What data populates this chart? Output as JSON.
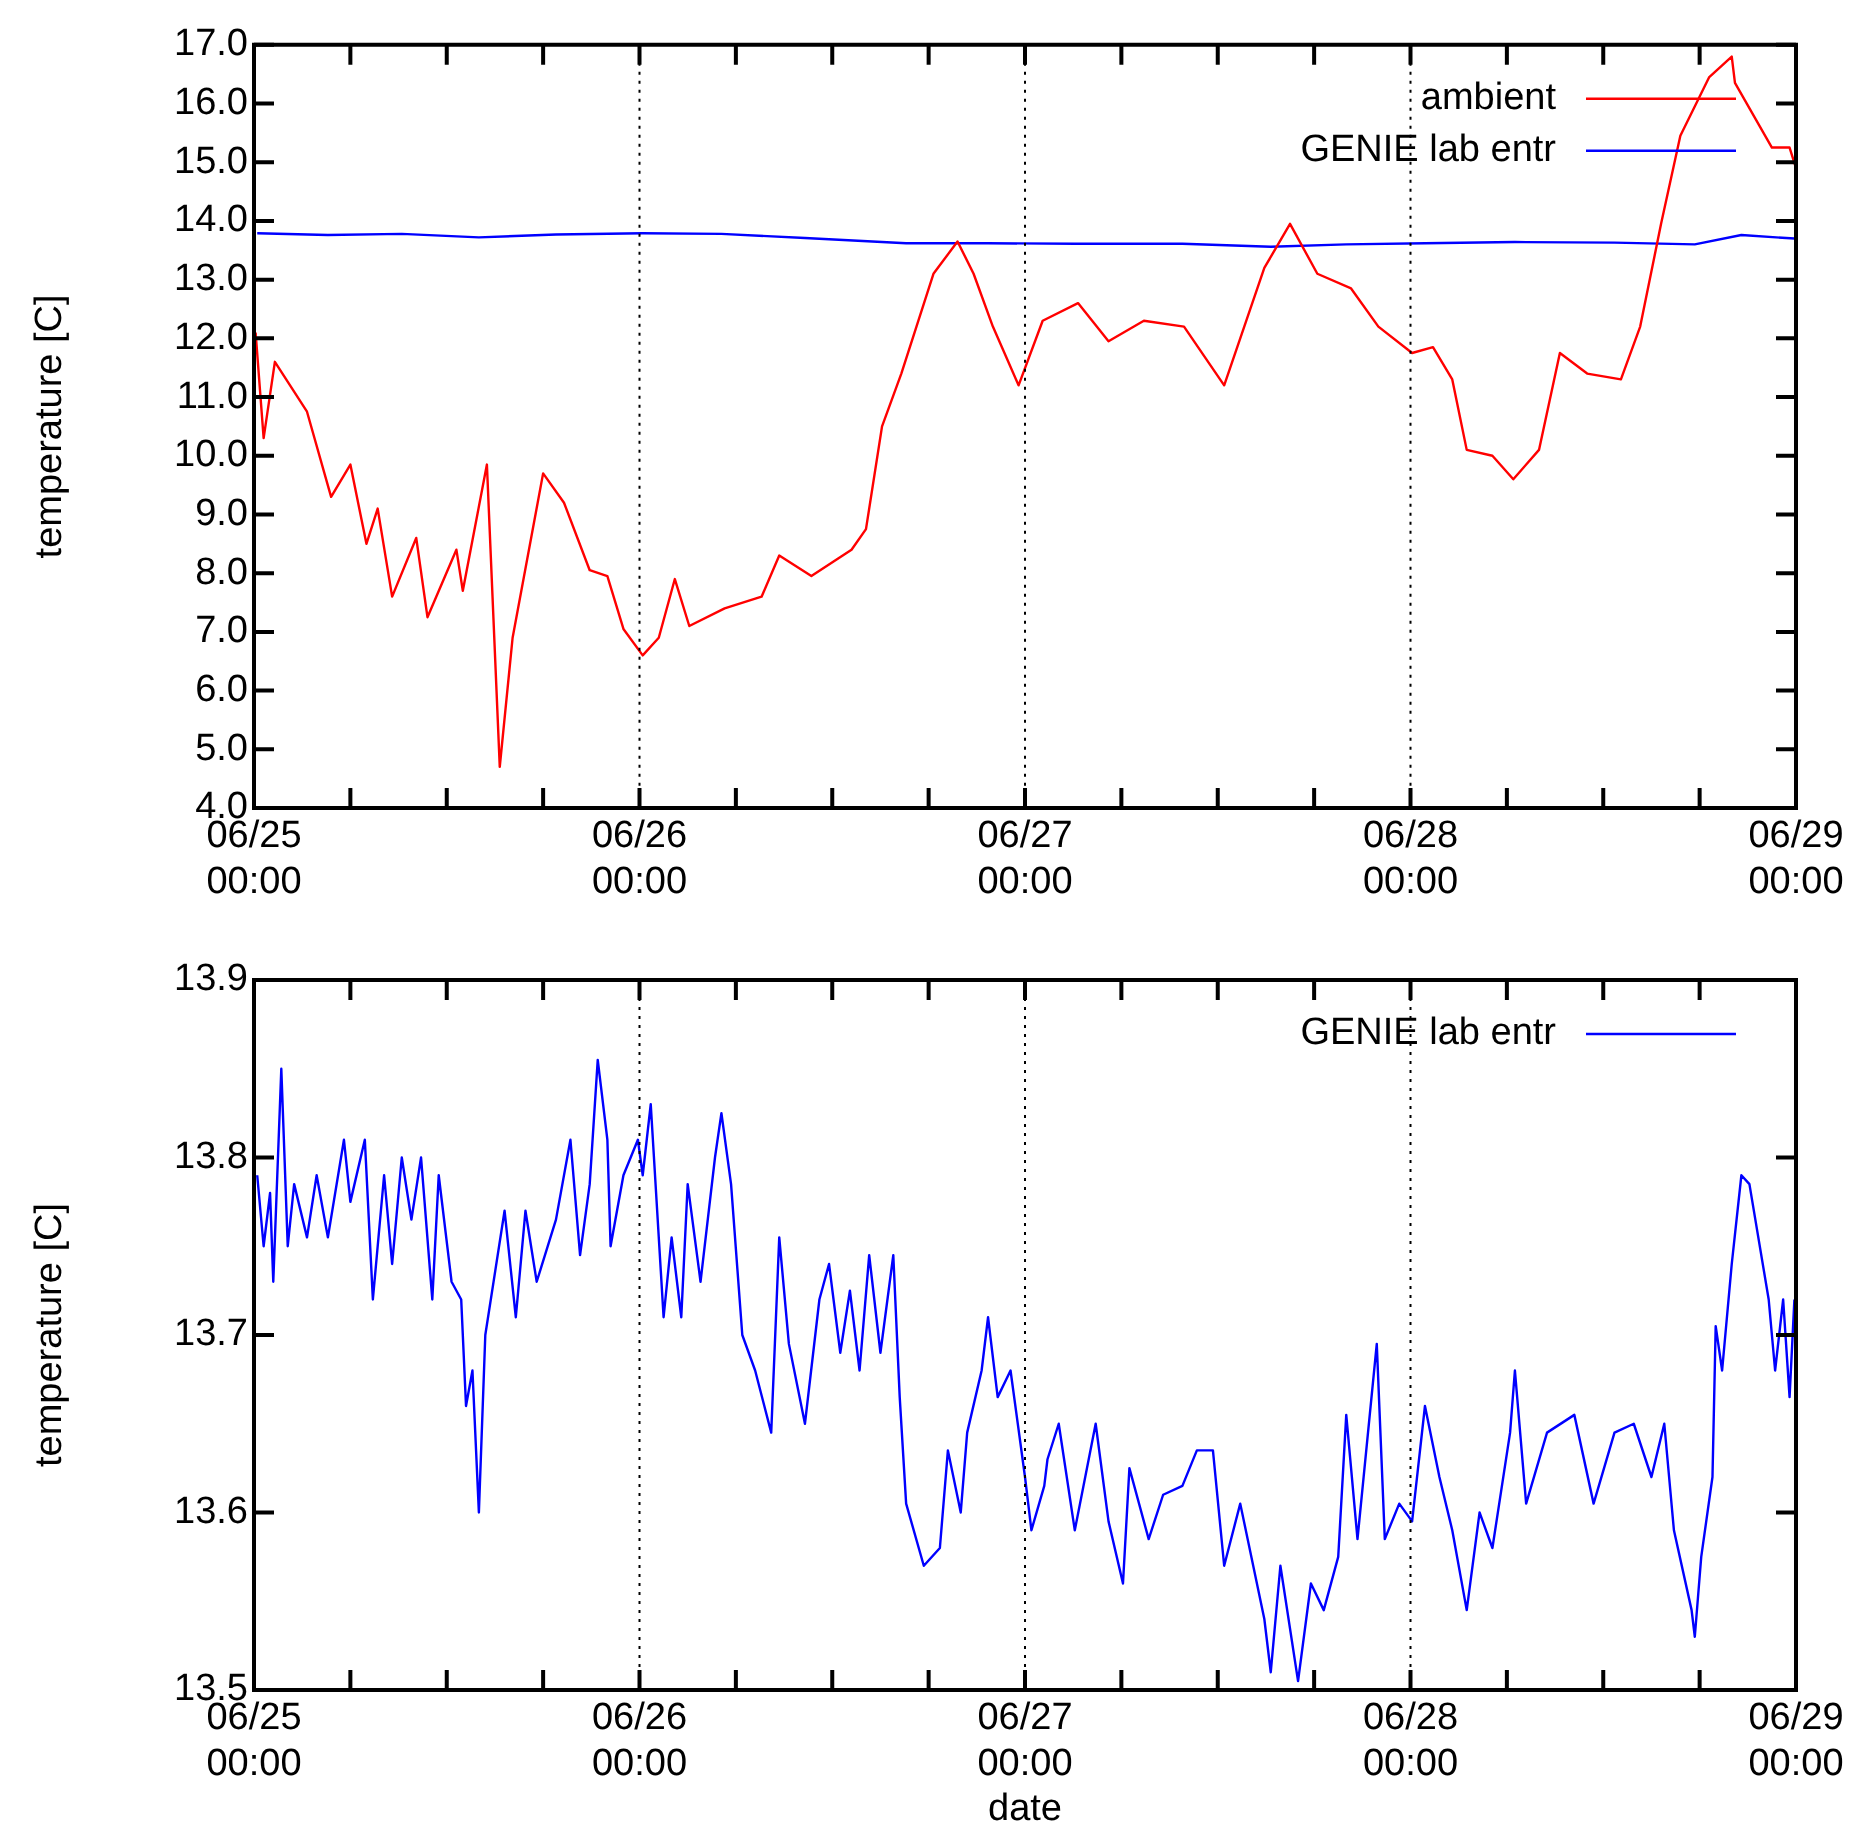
{
  "chart_data": [
    {
      "type": "line",
      "ylabel": "temperature [C]",
      "legend": "top right",
      "grid": "x",
      "marker": "none",
      "line_style": "solid",
      "xlim": [
        "--06-25T00:00",
        "--06-29T00:00"
      ],
      "xticks": [
        {
          "value": "--06-25T00:00",
          "label": "06/25 00:00"
        },
        {
          "value": "--06-25T06:00",
          "label": null
        },
        {
          "value": "--06-25T12:00",
          "label": null
        },
        {
          "value": "--06-25T18:00",
          "label": null
        },
        {
          "value": "--06-26T00:00",
          "label": "06/26 00:00"
        },
        {
          "value": "--06-26T06:00",
          "label": null
        },
        {
          "value": "--06-26T12:00",
          "label": null
        },
        {
          "value": "--06-26T18:00",
          "label": null
        },
        {
          "value": "--06-27T00:00",
          "label": "06/27 00:00"
        },
        {
          "value": "--06-27T06:00",
          "label": null
        },
        {
          "value": "--06-27T12:00",
          "label": null
        },
        {
          "value": "--06-27T18:00",
          "label": null
        },
        {
          "value": "--06-28T00:00",
          "label": "06/28 00:00"
        },
        {
          "value": "--06-28T06:00",
          "label": null
        },
        {
          "value": "--06-28T12:00",
          "label": null
        },
        {
          "value": "--06-28T18:00",
          "label": null
        },
        {
          "value": "--06-29T00:00",
          "label": "06/29 00:00"
        }
      ],
      "ylim": [
        4,
        17
      ],
      "yticks": [
        {
          "value": 4,
          "label": "4.0"
        },
        {
          "value": 5,
          "label": "5.0"
        },
        {
          "value": 6,
          "label": "6.0"
        },
        {
          "value": 7,
          "label": "7.0"
        },
        {
          "value": 8,
          "label": "8.0"
        },
        {
          "value": 9,
          "label": "9.0"
        },
        {
          "value": 10,
          "label": "10.0"
        },
        {
          "value": 11,
          "label": "11.0"
        },
        {
          "value": 12,
          "label": "12.0"
        },
        {
          "value": 13,
          "label": "13.0"
        },
        {
          "value": 14,
          "label": "14.0"
        },
        {
          "value": 15,
          "label": "15.0"
        },
        {
          "value": 16,
          "label": "16.0"
        },
        {
          "value": 17,
          "label": "17.0"
        }
      ],
      "series": [
        {
          "name": "ambient",
          "color": "#ff0000",
          "x": [
            "--06-25T00:06",
            "--06-25T00:36",
            "--06-25T01:18",
            "--06-25T03:18",
            "--06-25T04:48",
            "--06-25T06:00",
            "--06-25T07:00",
            "--06-25T07:42",
            "--06-25T08:36",
            "--06-25T10:06",
            "--06-25T10:48",
            "--06-25T12:36",
            "--06-25T13:00",
            "--06-25T14:30",
            "--06-25T15:18",
            "--06-25T16:06",
            "--06-25T18:00",
            "--06-25T19:18",
            "--06-25T20:54",
            "--06-25T22:00",
            "--06-25T23:00",
            "--06-26T00:12",
            "--06-26T01:12",
            "--06-26T02:12",
            "--06-26T03:06",
            "--06-26T05:18",
            "--06-26T07:36",
            "--06-26T08:42",
            "--06-26T10:42",
            "--06-26T13:12",
            "--06-26T14:06",
            "--06-26T15:06",
            "--06-26T16:18",
            "--06-26T18:18",
            "--06-26T19:48",
            "--06-26T20:48",
            "--06-26T22:00",
            "--06-26T23:36",
            "--06-27T01:06",
            "--06-27T03:18",
            "--06-27T05:12",
            "--06-27T07:24",
            "--06-27T09:54",
            "--06-27T12:24",
            "--06-27T14:54",
            "--06-27T16:30",
            "--06-27T18:12",
            "--06-27T20:18",
            "--06-27T22:00",
            "--06-28T00:06",
            "--06-28T01:24",
            "--06-28T02:36",
            "--06-28T03:30",
            "--06-28T05:06",
            "--06-28T06:24",
            "--06-28T08:00",
            "--06-28T09:18",
            "--06-28T11:00",
            "--06-28T13:06",
            "--06-28T14:18",
            "--06-28T15:36",
            "--06-28T16:48",
            "--06-28T18:36",
            "--06-28T20:00",
            "--06-28T20:12",
            "--06-28T22:30",
            "--06-28T23:36",
            "--06-29T00:00"
          ],
          "values": [
            12.1,
            10.3,
            11.6,
            10.75,
            9.3,
            9.85,
            8.5,
            9.1,
            7.6,
            8.6,
            7.25,
            8.4,
            7.7,
            9.85,
            4.7,
            6.9,
            9.7,
            9.2,
            8.05,
            7.95,
            7.05,
            6.6,
            6.9,
            7.9,
            7.1,
            7.4,
            7.6,
            8.3,
            7.95,
            8.4,
            8.75,
            10.5,
            11.4,
            13.1,
            13.65,
            13.1,
            12.2,
            11.2,
            12.3,
            12.6,
            11.95,
            12.3,
            12.2,
            11.2,
            13.2,
            13.95,
            13.1,
            12.85,
            12.2,
            11.75,
            11.85,
            11.3,
            10.1,
            10.0,
            9.6,
            10.1,
            11.75,
            11.4,
            11.3,
            12.2,
            13.95,
            15.45,
            16.45,
            16.8,
            16.35,
            15.25,
            15.25,
            14.9
          ]
        },
        {
          "name": "GENIE lab entr",
          "color": "#0000ff",
          "x": [
            "--06-25T00:12",
            "--06-25T04:36",
            "--06-25T09:12",
            "--06-25T14:00",
            "--06-25T18:48",
            "--06-26T00:12",
            "--06-26T05:06",
            "--06-26T10:18",
            "--06-26T16:36",
            "--06-26T21:42",
            "--06-27T03:06",
            "--06-27T09:48",
            "--06-27T15:18",
            "--06-27T20:00",
            "--06-28T00:54",
            "--06-28T06:30",
            "--06-28T12:42",
            "--06-28T17:42",
            "--06-28T20:36",
            "--06-28T23:54"
          ],
          "values": [
            13.79,
            13.76,
            13.78,
            13.72,
            13.77,
            13.79,
            13.78,
            13.71,
            13.62,
            13.62,
            13.61,
            13.61,
            13.56,
            13.6,
            13.62,
            13.64,
            13.63,
            13.6,
            13.76,
            13.7
          ]
        }
      ]
    },
    {
      "type": "line",
      "xlabel": "date",
      "ylabel": "temperature [C]",
      "legend": "top right",
      "grid": "x",
      "marker": "none",
      "line_style": "solid",
      "xlim": [
        "--06-25T00:00",
        "--06-29T00:00"
      ],
      "xticks": [
        {
          "value": "--06-25T00:00",
          "label": "06/25 00:00"
        },
        {
          "value": "--06-25T06:00",
          "label": null
        },
        {
          "value": "--06-25T12:00",
          "label": null
        },
        {
          "value": "--06-25T18:00",
          "label": null
        },
        {
          "value": "--06-26T00:00",
          "label": "06/26 00:00"
        },
        {
          "value": "--06-26T06:00",
          "label": null
        },
        {
          "value": "--06-26T12:00",
          "label": null
        },
        {
          "value": "--06-26T18:00",
          "label": null
        },
        {
          "value": "--06-27T00:00",
          "label": "06/27 00:00"
        },
        {
          "value": "--06-27T06:00",
          "label": null
        },
        {
          "value": "--06-27T12:00",
          "label": null
        },
        {
          "value": "--06-27T18:00",
          "label": null
        },
        {
          "value": "--06-28T00:00",
          "label": "06/28 00:00"
        },
        {
          "value": "--06-28T06:00",
          "label": null
        },
        {
          "value": "--06-28T12:00",
          "label": null
        },
        {
          "value": "--06-28T18:00",
          "label": null
        },
        {
          "value": "--06-29T00:00",
          "label": "06/29 00:00"
        }
      ],
      "ylim": [
        13.5,
        13.9
      ],
      "yticks": [
        13.5,
        13.6,
        13.7,
        13.8,
        13.9
      ],
      "series": [
        {
          "name": "GENIE lab entr",
          "color": "#0000ff",
          "x": [
            "--06-25T00:12",
            "--06-25T00:36",
            "--06-25T01:00",
            "--06-25T01:12",
            "--06-25T01:42",
            "--06-25T02:06",
            "--06-25T02:30",
            "--06-25T03:18",
            "--06-25T03:54",
            "--06-25T04:36",
            "--06-25T05:36",
            "--06-25T06:00",
            "--06-25T06:54",
            "--06-25T07:24",
            "--06-25T08:06",
            "--06-25T08:36",
            "--06-25T09:12",
            "--06-25T09:48",
            "--06-25T10:24",
            "--06-25T11:06",
            "--06-25T11:30",
            "--06-25T12:18",
            "--06-25T12:54",
            "--06-25T13:12",
            "--06-25T13:36",
            "--06-25T14:00",
            "--06-25T14:24",
            "--06-25T15:36",
            "--06-25T16:18",
            "--06-25T16:54",
            "--06-25T17:36",
            "--06-25T18:48",
            "--06-25T19:42",
            "--06-25T20:18",
            "--06-25T20:54",
            "--06-25T21:24",
            "--06-25T22:00",
            "--06-25T22:12",
            "--06-25T23:00",
            "--06-25T23:54",
            "--06-26T00:12",
            "--06-26T00:42",
            "--06-26T01:30",
            "--06-26T02:00",
            "--06-26T02:36",
            "--06-26T03:00",
            "--06-26T03:48",
            "--06-26T04:42",
            "--06-26T05:06",
            "--06-26T05:42",
            "--06-26T06:24",
            "--06-26T07:12",
            "--06-26T08:12",
            "--06-26T08:42",
            "--06-26T09:18",
            "--06-26T10:18",
            "--06-26T11:12",
            "--06-26T11:48",
            "--06-26T12:30",
            "--06-26T13:06",
            "--06-26T13:42",
            "--06-26T14:18",
            "--06-26T15:00",
            "--06-26T15:48",
            "--06-26T16:12",
            "--06-26T16:36",
            "--06-26T17:42",
            "--06-26T18:42",
            "--06-26T19:12",
            "--06-26T20:00",
            "--06-26T20:24",
            "--06-26T21:18",
            "--06-26T21:42",
            "--06-26T22:18",
            "--06-26T23:06",
            "--06-27T00:00",
            "--06-27T00:24",
            "--06-27T01:12",
            "--06-27T01:24",
            "--06-27T02:06",
            "--06-27T03:06",
            "--06-27T04:24",
            "--06-27T05:12",
            "--06-27T06:06",
            "--06-27T06:30",
            "--06-27T07:42",
            "--06-27T08:36",
            "--06-27T09:48",
            "--06-27T10:42",
            "--06-27T11:42",
            "--06-27T12:24",
            "--06-27T13:24",
            "--06-27T14:54",
            "--06-27T15:18",
            "--06-27T15:54",
            "--06-27T17:00",
            "--06-27T17:48",
            "--06-27T18:36",
            "--06-27T19:30",
            "--06-27T20:00",
            "--06-27T20:42",
            "--06-27T21:54",
            "--06-27T22:24",
            "--06-27T23:18",
            "--06-28T00:06",
            "--06-28T00:54",
            "--06-28T01:48",
            "--06-28T02:36",
            "--06-28T03:30",
            "--06-28T04:18",
            "--06-28T05:06",
            "--06-28T06:12",
            "--06-28T06:30",
            "--06-28T07:12",
            "--06-28T08:30",
            "--06-28T10:12",
            "--06-28T11:24",
            "--06-28T12:42",
            "--06-28T13:54",
            "--06-28T15:00",
            "--06-28T15:48",
            "--06-28T16:24",
            "--06-28T17:30",
            "--06-28T17:42",
            "--06-28T18:06",
            "--06-28T18:48",
            "--06-28T19:00",
            "--06-28T19:24",
            "--06-28T20:00",
            "--06-28T20:36",
            "--06-28T21:06",
            "--06-28T22:18",
            "--06-28T22:42",
            "--06-28T23:12",
            "--06-28T23:36",
            "--06-28T23:54"
          ],
          "values": [
            13.79,
            13.75,
            13.78,
            13.73,
            13.85,
            13.75,
            13.785,
            13.755,
            13.79,
            13.755,
            13.81,
            13.775,
            13.81,
            13.72,
            13.79,
            13.74,
            13.8,
            13.765,
            13.8,
            13.72,
            13.79,
            13.73,
            13.72,
            13.66,
            13.68,
            13.6,
            13.7,
            13.77,
            13.71,
            13.77,
            13.73,
            13.765,
            13.81,
            13.745,
            13.785,
            13.855,
            13.81,
            13.75,
            13.79,
            13.81,
            13.79,
            13.83,
            13.71,
            13.755,
            13.71,
            13.785,
            13.73,
            13.8,
            13.825,
            13.785,
            13.7,
            13.68,
            13.645,
            13.755,
            13.695,
            13.65,
            13.72,
            13.74,
            13.69,
            13.725,
            13.68,
            13.745,
            13.69,
            13.745,
            13.665,
            13.605,
            13.57,
            13.58,
            13.635,
            13.6,
            13.645,
            13.68,
            13.71,
            13.665,
            13.68,
            13.62,
            13.59,
            13.615,
            13.63,
            13.65,
            13.59,
            13.65,
            13.595,
            13.56,
            13.625,
            13.585,
            13.61,
            13.615,
            13.635,
            13.635,
            13.57,
            13.605,
            13.54,
            13.51,
            13.57,
            13.505,
            13.56,
            13.545,
            13.575,
            13.655,
            13.585,
            13.695,
            13.585,
            13.605,
            13.595,
            13.66,
            13.62,
            13.59,
            13.545,
            13.6,
            13.58,
            13.645,
            13.68,
            13.605,
            13.645,
            13.655,
            13.605,
            13.645,
            13.65,
            13.62,
            13.65,
            13.59,
            13.545,
            13.53,
            13.575,
            13.62,
            13.705,
            13.68,
            13.74,
            13.79,
            13.785,
            13.72,
            13.68,
            13.72,
            13.665,
            13.72
          ]
        }
      ]
    }
  ]
}
